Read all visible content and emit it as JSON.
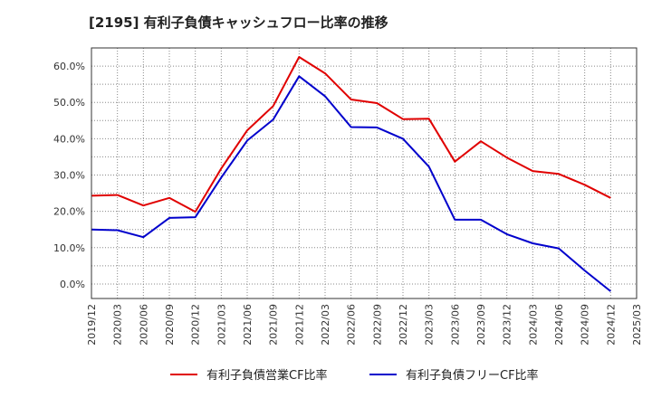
{
  "chart_data": {
    "type": "line",
    "title": "[2195]  有利子負債キャッシュフロー比率の推移",
    "x": [
      "2019/12",
      "2020/03",
      "2020/06",
      "2020/09",
      "2020/12",
      "2021/03",
      "2021/06",
      "2021/09",
      "2021/12",
      "2022/03",
      "2022/06",
      "2022/09",
      "2022/12",
      "2023/03",
      "2023/06",
      "2023/09",
      "2023/12",
      "2024/03",
      "2024/06",
      "2024/09",
      "2024/12",
      "2025/03"
    ],
    "series": [
      {
        "name": "有利子負債営業CF比率",
        "color": "#e00000",
        "values": [
          24.3,
          24.5,
          21.6,
          23.7,
          19.9,
          31.8,
          42.3,
          49.0,
          62.5,
          58.0,
          50.8,
          49.8,
          45.4,
          45.5,
          33.7,
          39.3,
          34.8,
          31.1,
          30.3,
          27.3,
          23.7,
          null
        ]
      },
      {
        "name": "有利子負債フリーCF比率",
        "color": "#0000cc",
        "values": [
          15.0,
          14.8,
          12.9,
          18.2,
          18.4,
          29.3,
          39.5,
          45.3,
          57.2,
          51.7,
          43.2,
          43.1,
          40.0,
          32.3,
          17.7,
          17.7,
          13.7,
          11.2,
          9.8,
          3.7,
          -2.0,
          null
        ]
      }
    ],
    "xlabel": "",
    "ylabel": "",
    "y_ticks": [
      0,
      10,
      20,
      30,
      40,
      50,
      60
    ],
    "y_tick_labels": [
      "0.0%",
      "10.0%",
      "20.0%",
      "30.0%",
      "40.0%",
      "50.0%",
      "60.0%"
    ],
    "ylim": [
      -4,
      65
    ],
    "grid": true,
    "legend_position": "bottom"
  }
}
